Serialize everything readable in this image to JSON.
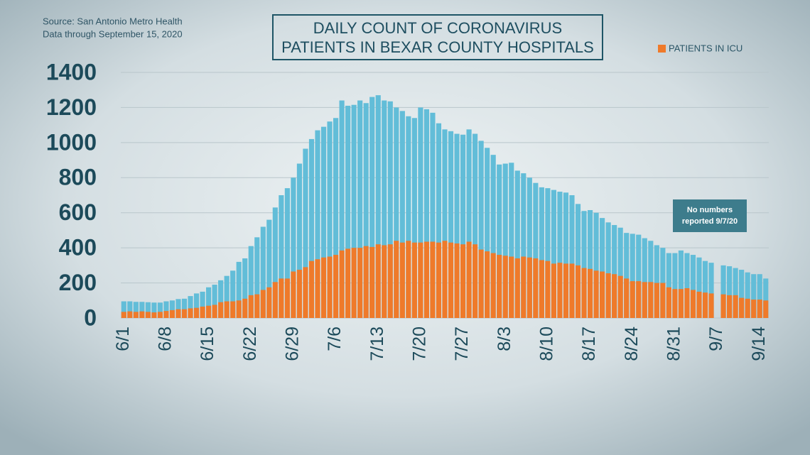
{
  "chart_data": {
    "type": "bar",
    "stacked": false,
    "title": [
      "DAILY COUNT OF CORONAVIRUS",
      "PATIENTS IN BEXAR COUNTY HOSPITALS"
    ],
    "source": [
      "Source: San Antonio Metro Health",
      "Data through September 15, 2020"
    ],
    "annotation": [
      "No numbers",
      "reported 9/7/20"
    ],
    "categories": [
      "6/1",
      null,
      null,
      null,
      null,
      null,
      null,
      "6/8",
      null,
      null,
      null,
      null,
      null,
      null,
      "6/15",
      null,
      null,
      null,
      null,
      null,
      null,
      "6/22",
      null,
      null,
      null,
      null,
      null,
      null,
      "6/29",
      null,
      null,
      null,
      null,
      null,
      null,
      "7/6",
      null,
      null,
      null,
      null,
      null,
      null,
      "7/13",
      null,
      null,
      null,
      null,
      null,
      null,
      "7/20",
      null,
      null,
      null,
      null,
      null,
      null,
      "7/27",
      null,
      null,
      null,
      null,
      null,
      null,
      "8/3",
      null,
      null,
      null,
      null,
      null,
      null,
      "8/10",
      null,
      null,
      null,
      null,
      null,
      null,
      "8/17",
      null,
      null,
      null,
      null,
      null,
      null,
      "8/24",
      null,
      null,
      null,
      null,
      null,
      null,
      "8/31",
      null,
      null,
      null,
      null,
      null,
      null,
      "9/7",
      null,
      null,
      null,
      null,
      null,
      null,
      "9/14",
      null
    ],
    "series": [
      {
        "color": "#62bdd8",
        "values": [
          95,
          95,
          92,
          92,
          90,
          88,
          88,
          95,
          100,
          108,
          110,
          125,
          140,
          150,
          175,
          190,
          215,
          240,
          270,
          320,
          340,
          410,
          460,
          520,
          560,
          630,
          700,
          740,
          800,
          880,
          965,
          1020,
          1070,
          1090,
          1120,
          1140,
          1240,
          1210,
          1215,
          1240,
          1225,
          1260,
          1270,
          1240,
          1235,
          1200,
          1180,
          1150,
          1140,
          1200,
          1190,
          1170,
          1110,
          1075,
          1065,
          1050,
          1045,
          1075,
          1050,
          1010,
          970,
          930,
          875,
          880,
          885,
          840,
          825,
          800,
          770,
          745,
          740,
          730,
          720,
          715,
          700,
          650,
          610,
          615,
          600,
          570,
          545,
          530,
          515,
          485,
          480,
          475,
          455,
          440,
          415,
          400,
          370,
          370,
          385,
          370,
          360,
          345,
          325,
          315,
          null,
          300,
          295,
          285,
          275,
          260,
          250,
          250,
          225
        ]
      },
      {
        "name": "PATIENTS IN ICU",
        "color": "#ef7a2a",
        "values": [
          35,
          38,
          35,
          38,
          35,
          32,
          35,
          40,
          45,
          50,
          50,
          55,
          58,
          65,
          70,
          75,
          90,
          95,
          95,
          100,
          110,
          130,
          135,
          160,
          175,
          205,
          225,
          225,
          265,
          275,
          290,
          325,
          335,
          345,
          350,
          360,
          385,
          395,
          400,
          400,
          410,
          405,
          420,
          415,
          420,
          440,
          430,
          440,
          430,
          430,
          435,
          435,
          430,
          440,
          430,
          425,
          420,
          435,
          420,
          390,
          380,
          370,
          360,
          355,
          350,
          340,
          350,
          345,
          340,
          330,
          325,
          310,
          315,
          310,
          310,
          300,
          285,
          280,
          270,
          265,
          255,
          250,
          240,
          225,
          210,
          210,
          205,
          205,
          200,
          200,
          175,
          165,
          165,
          170,
          160,
          150,
          145,
          140,
          null,
          135,
          130,
          130,
          115,
          110,
          105,
          105,
          100
        ]
      }
    ],
    "ylim": [
      0,
      1400
    ],
    "yticks": [
      0,
      200,
      400,
      600,
      800,
      1000,
      1200,
      1400
    ],
    "grid": true
  }
}
